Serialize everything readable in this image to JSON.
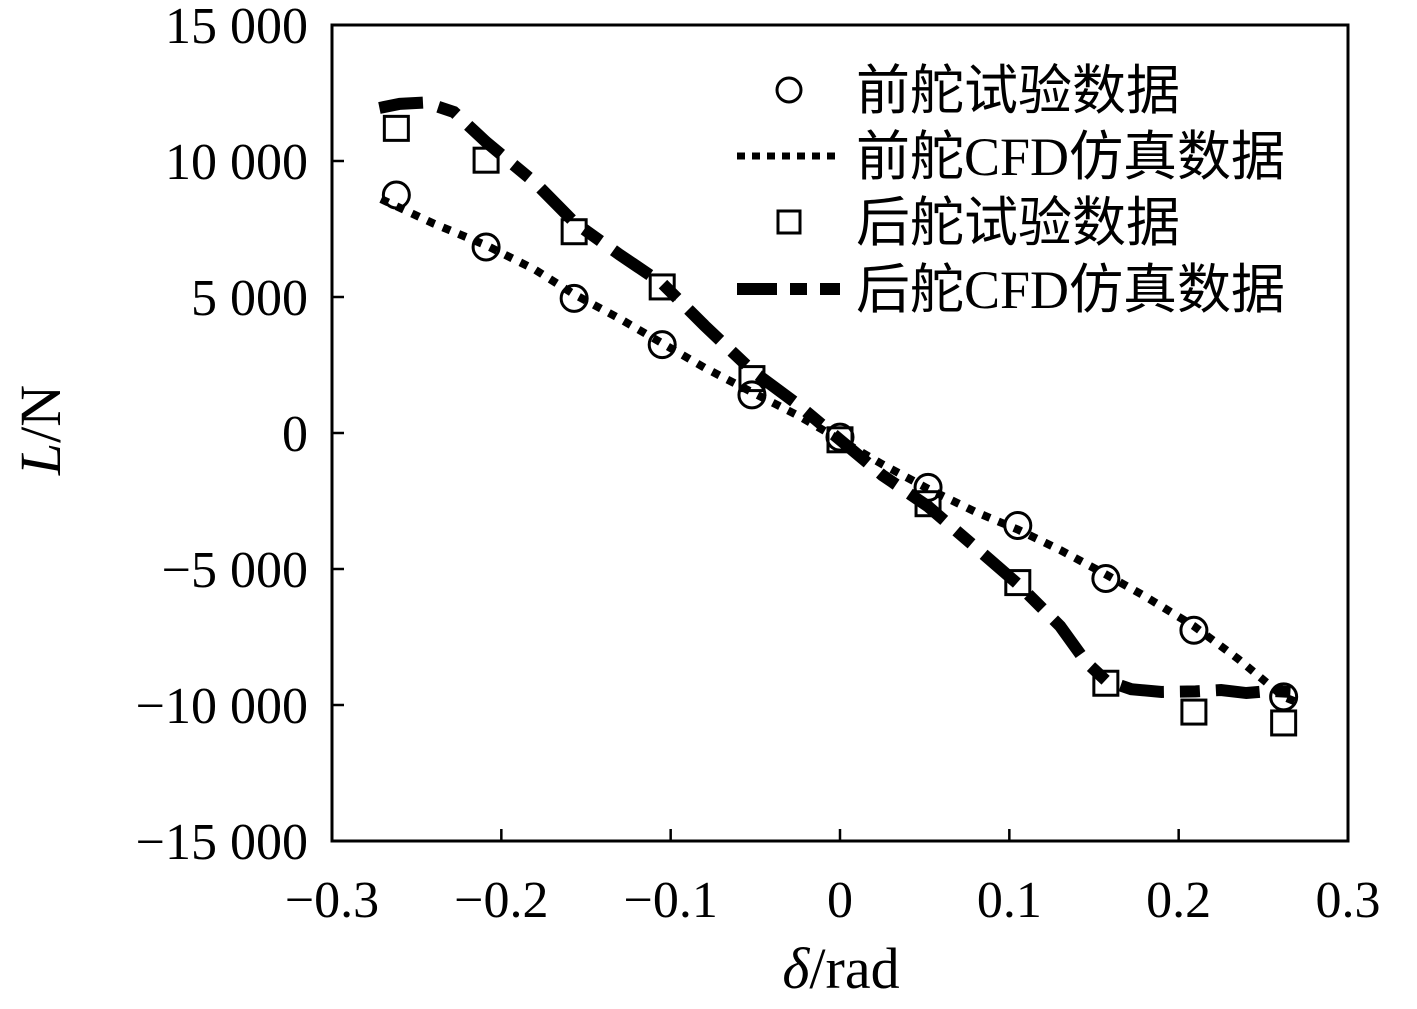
{
  "chart_data": {
    "type": "line",
    "title": "",
    "xlabel": {
      "italic": "δ",
      "rest": "/rad"
    },
    "ylabel": {
      "italic": "L",
      "rest": "/N"
    },
    "xlim": [
      -0.3,
      0.3
    ],
    "ylim": [
      -15000,
      15000
    ],
    "grid": false,
    "legend_position": "upper-right-inside",
    "ink_color": "#000000",
    "background_color": "#ffffff",
    "x_ticks": {
      "values": [
        -0.3,
        -0.2,
        -0.1,
        0,
        0.1,
        0.2,
        0.3
      ],
      "labels": [
        "−0.3",
        "−0.2",
        "−0.1",
        "0",
        "0.1",
        "0.2",
        "0.3"
      ]
    },
    "y_ticks": {
      "values": [
        15000,
        10000,
        5000,
        0,
        -5000,
        -10000,
        -15000
      ],
      "labels": [
        "15 000",
        "10 000",
        "5 000",
        "0",
        "−5 000",
        "−10 000",
        "−15 000"
      ]
    },
    "series": [
      {
        "id": "front-rudder-test",
        "label": "前舵试验数据",
        "kind": "scatter",
        "marker": "circle",
        "x": [
          -0.262,
          -0.209,
          -0.157,
          -0.105,
          -0.052,
          0,
          0.052,
          0.105,
          0.157,
          0.209,
          0.262
        ],
        "y": [
          8750,
          6840,
          4950,
          3250,
          1400,
          -150,
          -2000,
          -3400,
          -5350,
          -7250,
          -9700
        ]
      },
      {
        "id": "front-rudder-cfd",
        "label": "前舵CFD仿真数据",
        "kind": "line",
        "line_style": "dotted",
        "points": [
          [
            -0.271,
            8600
          ],
          [
            -0.24,
            7700
          ],
          [
            -0.209,
            6900
          ],
          [
            -0.18,
            6000
          ],
          [
            -0.157,
            5100
          ],
          [
            -0.13,
            4200
          ],
          [
            -0.105,
            3300
          ],
          [
            -0.08,
            2400
          ],
          [
            -0.052,
            1500
          ],
          [
            -0.025,
            650
          ],
          [
            0,
            -250
          ],
          [
            0.025,
            -1150
          ],
          [
            0.052,
            -2050
          ],
          [
            0.08,
            -2900
          ],
          [
            0.105,
            -3550
          ],
          [
            0.13,
            -4300
          ],
          [
            0.157,
            -5200
          ],
          [
            0.18,
            -6000
          ],
          [
            0.209,
            -7100
          ],
          [
            0.235,
            -8300
          ],
          [
            0.262,
            -9700
          ],
          [
            0.27,
            -9900
          ]
        ]
      },
      {
        "id": "rear-rudder-test",
        "label": "后舵试验数据",
        "kind": "scatter",
        "marker": "square",
        "x": [
          -0.262,
          -0.209,
          -0.157,
          -0.105,
          -0.052,
          0,
          0.052,
          0.105,
          0.157,
          0.209,
          0.262
        ],
        "y": [
          11200,
          10030,
          7400,
          5370,
          2000,
          -250,
          -2600,
          -5500,
          -9200,
          -10260,
          -10660
        ]
      },
      {
        "id": "rear-rudder-cfd",
        "label": "后舵CFD仿真数据",
        "kind": "line",
        "line_style": "dash-dot",
        "points": [
          [
            -0.272,
            11950
          ],
          [
            -0.26,
            12100
          ],
          [
            -0.245,
            12150
          ],
          [
            -0.228,
            11800
          ],
          [
            -0.209,
            10700
          ],
          [
            -0.18,
            9200
          ],
          [
            -0.157,
            7750
          ],
          [
            -0.13,
            6550
          ],
          [
            -0.105,
            5500
          ],
          [
            -0.08,
            3950
          ],
          [
            -0.052,
            2300
          ],
          [
            -0.025,
            1050
          ],
          [
            0,
            -250
          ],
          [
            0.025,
            -1550
          ],
          [
            0.052,
            -2700
          ],
          [
            0.08,
            -4200
          ],
          [
            0.105,
            -5550
          ],
          [
            0.13,
            -7100
          ],
          [
            0.145,
            -8400
          ],
          [
            0.157,
            -9100
          ],
          [
            0.172,
            -9420
          ],
          [
            0.19,
            -9520
          ],
          [
            0.21,
            -9500
          ],
          [
            0.225,
            -9450
          ],
          [
            0.24,
            -9560
          ],
          [
            0.255,
            -9480
          ],
          [
            0.266,
            -9520
          ]
        ]
      }
    ]
  }
}
